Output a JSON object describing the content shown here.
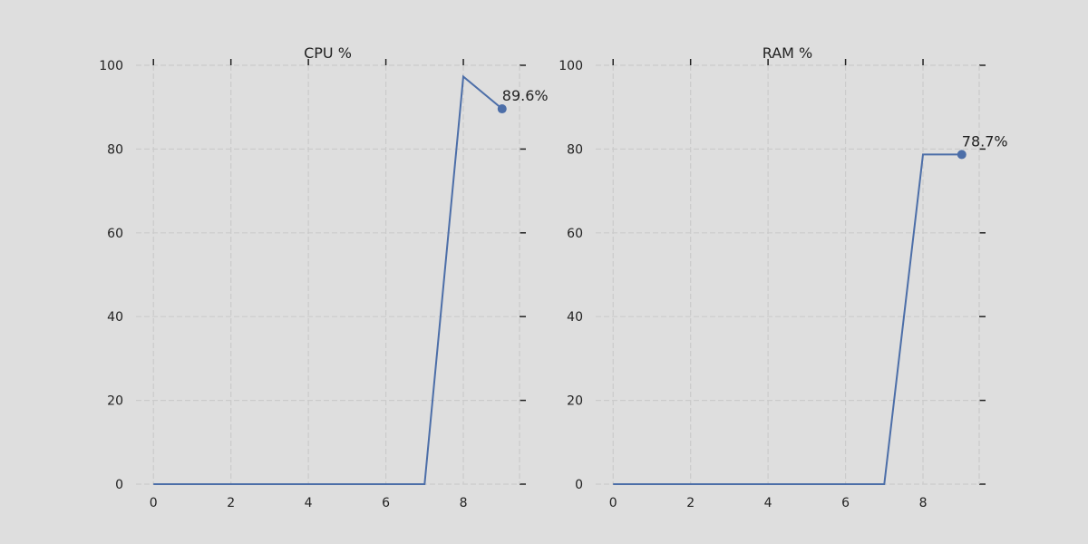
{
  "chart_data": [
    {
      "type": "line",
      "title": "CPU %",
      "xlabel": "",
      "ylabel": "",
      "xlim": [
        -0.45,
        9.45
      ],
      "ylim": [
        0,
        100
      ],
      "x_ticks": [
        0,
        2,
        4,
        6,
        8
      ],
      "y_ticks": [
        0,
        20,
        40,
        60,
        80,
        100
      ],
      "grid": true,
      "legend": "none",
      "series": [
        {
          "x": [
            0,
            1,
            2,
            3,
            4,
            5,
            6,
            7,
            8,
            9
          ],
          "y": [
            0,
            0,
            0,
            0,
            0,
            0,
            0,
            0,
            97.3,
            89.6
          ]
        }
      ],
      "annotation": "89.6%",
      "color": "#4c6ea8"
    },
    {
      "type": "line",
      "title": "RAM %",
      "xlabel": "",
      "ylabel": "",
      "xlim": [
        -0.45,
        9.45
      ],
      "ylim": [
        0,
        100
      ],
      "x_ticks": [
        0,
        2,
        4,
        6,
        8
      ],
      "y_ticks": [
        0,
        20,
        40,
        60,
        80,
        100
      ],
      "grid": true,
      "legend": "none",
      "series": [
        {
          "x": [
            0,
            1,
            2,
            3,
            4,
            5,
            6,
            7,
            8,
            9
          ],
          "y": [
            0,
            0,
            0,
            0,
            0,
            0,
            0,
            0,
            78.7,
            78.7
          ]
        }
      ],
      "annotation": "78.7%",
      "color": "#4c6ea8"
    }
  ],
  "colors": {
    "background": "#dedede",
    "grid": "#cbcbcb",
    "line": "#4c6ea8",
    "text": "#222222"
  }
}
